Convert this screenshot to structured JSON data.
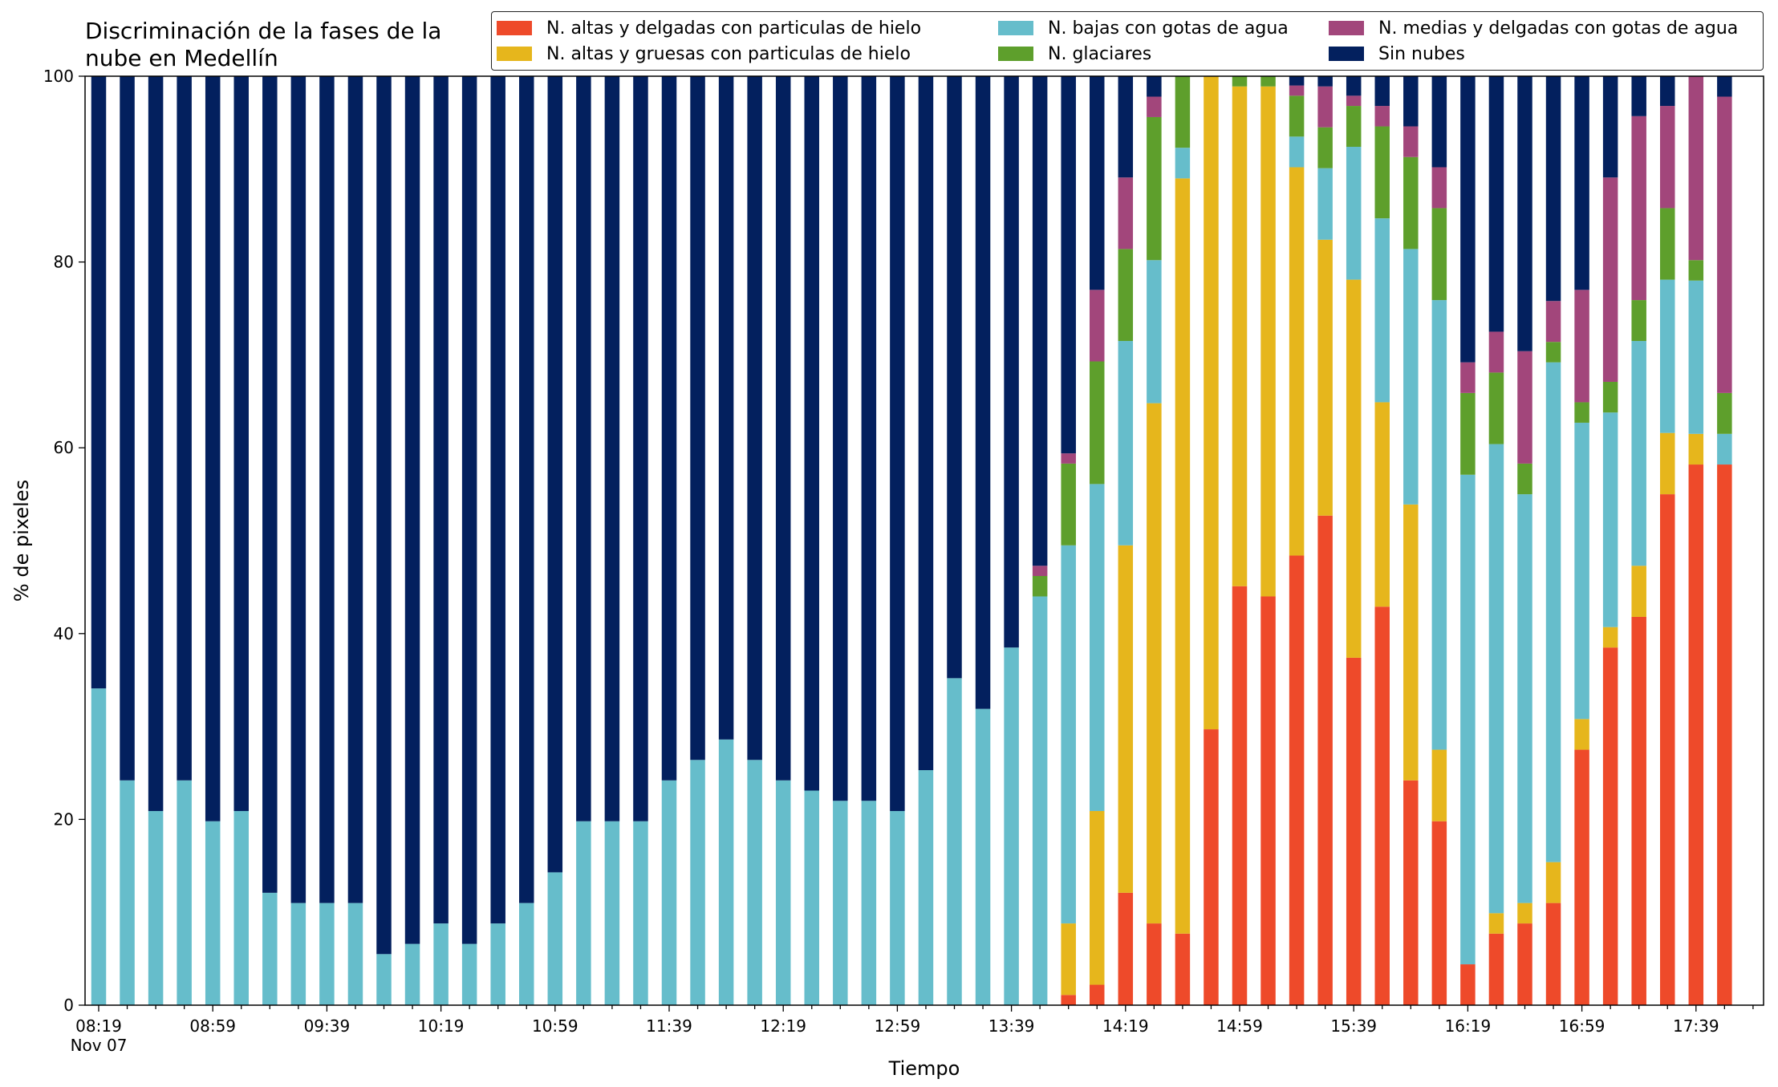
{
  "chart_data": {
    "type": "bar",
    "stacked": true,
    "title": "Discriminación de la fases de la nube en Medellín",
    "xlabel": "Tiempo",
    "ylabel": "% de pixeles",
    "ylim": [
      0,
      100
    ],
    "yticks": [
      0,
      20,
      40,
      60,
      80,
      100
    ],
    "grid": false,
    "legend_position": "top-right",
    "tick_labels": [
      "08:19",
      "08:59",
      "09:39",
      "10:19",
      "10:59",
      "11:39",
      "12:19",
      "12:59",
      "13:39",
      "14:19",
      "14:59",
      "15:39",
      "16:19",
      "16:59",
      "17:39"
    ],
    "tick_sublabel": "Nov 07",
    "categories": [
      "08:19",
      "08:29",
      "08:39",
      "08:49",
      "08:59",
      "09:09",
      "09:19",
      "09:29",
      "09:39",
      "09:49",
      "09:59",
      "10:09",
      "10:19",
      "10:29",
      "10:39",
      "10:49",
      "10:59",
      "11:09",
      "11:19",
      "11:29",
      "11:39",
      "11:49",
      "11:59",
      "12:09",
      "12:19",
      "12:29",
      "12:39",
      "12:49",
      "12:59",
      "13:09",
      "13:19",
      "13:29",
      "13:39",
      "13:49",
      "13:59",
      "14:09",
      "14:19",
      "14:29",
      "14:39",
      "14:49",
      "14:59",
      "15:09",
      "15:19",
      "15:29",
      "15:39",
      "15:49",
      "15:59",
      "16:09",
      "16:19",
      "16:29",
      "16:39",
      "16:49",
      "16:59",
      "17:09",
      "17:19",
      "17:29",
      "17:39",
      "17:49"
    ],
    "series": [
      {
        "name": "N. altas y delgadas con particulas de hielo",
        "color": "#ee4a2a",
        "values": [
          0,
          0,
          0,
          0,
          0,
          0,
          0,
          0,
          0,
          0,
          0,
          0,
          0,
          0,
          0,
          0,
          0,
          0,
          0,
          0,
          0,
          0,
          0,
          0,
          0,
          0,
          0,
          0,
          0,
          0,
          0,
          0,
          0,
          0,
          1.1,
          2.2,
          12.1,
          8.8,
          7.7,
          29.7,
          45.1,
          44.0,
          48.4,
          52.7,
          37.4,
          42.9,
          24.2,
          19.8,
          4.4,
          7.7,
          8.8,
          11.0,
          27.5,
          38.5,
          41.8,
          55.0,
          58.2,
          58.2
        ]
      },
      {
        "name": "N. altas y gruesas con particulas de hielo",
        "color": "#e6b61c",
        "values": [
          0,
          0,
          0,
          0,
          0,
          0,
          0,
          0,
          0,
          0,
          0,
          0,
          0,
          0,
          0,
          0,
          0,
          0,
          0,
          0,
          0,
          0,
          0,
          0,
          0,
          0,
          0,
          0,
          0,
          0,
          0,
          0,
          0,
          0,
          7.7,
          18.7,
          37.4,
          56.0,
          81.3,
          70.3,
          53.8,
          54.9,
          41.8,
          29.7,
          40.7,
          22.0,
          29.7,
          7.7,
          0,
          2.2,
          2.2,
          4.4,
          3.3,
          2.2,
          5.5,
          6.6,
          3.3,
          0
        ]
      },
      {
        "name": "N. bajas con gotas de agua",
        "color": "#66bdcb",
        "values": [
          34.1,
          24.2,
          20.9,
          24.2,
          19.8,
          20.9,
          12.1,
          11.0,
          11.0,
          11.0,
          5.5,
          6.6,
          8.8,
          6.6,
          8.8,
          11.0,
          14.3,
          19.8,
          19.8,
          19.8,
          24.2,
          26.4,
          28.6,
          26.4,
          24.2,
          23.1,
          22.0,
          22.0,
          20.9,
          25.3,
          35.2,
          31.9,
          38.5,
          44.0,
          40.7,
          35.2,
          22.0,
          15.4,
          3.3,
          0,
          0,
          0,
          3.3,
          7.7,
          14.3,
          19.8,
          27.5,
          48.4,
          52.7,
          50.5,
          44.0,
          53.8,
          31.9,
          23.1,
          24.2,
          16.5,
          16.5,
          3.3
        ]
      },
      {
        "name": "N. glaciares",
        "color": "#5e9f2c",
        "values": [
          0,
          0,
          0,
          0,
          0,
          0,
          0,
          0,
          0,
          0,
          0,
          0,
          0,
          0,
          0,
          0,
          0,
          0,
          0,
          0,
          0,
          0,
          0,
          0,
          0,
          0,
          0,
          0,
          0,
          0,
          0,
          0,
          0,
          2.2,
          8.8,
          13.2,
          9.9,
          15.4,
          7.7,
          0,
          1.1,
          1.1,
          4.4,
          4.4,
          4.4,
          9.9,
          9.9,
          9.9,
          8.8,
          7.7,
          3.3,
          2.2,
          2.2,
          3.3,
          4.4,
          7.7,
          2.2,
          4.4
        ]
      },
      {
        "name": "N. medias y delgadas con gotas de agua",
        "color": "#a2467b",
        "values": [
          0,
          0,
          0,
          0,
          0,
          0,
          0,
          0,
          0,
          0,
          0,
          0,
          0,
          0,
          0,
          0,
          0,
          0,
          0,
          0,
          0,
          0,
          0,
          0,
          0,
          0,
          0,
          0,
          0,
          0,
          0,
          0,
          0,
          1.1,
          1.1,
          7.7,
          7.7,
          2.2,
          0,
          0,
          0,
          0,
          1.1,
          4.4,
          1.1,
          2.2,
          3.3,
          4.4,
          3.3,
          4.4,
          12.1,
          4.4,
          12.1,
          22.0,
          19.8,
          11.0,
          19.8,
          31.9
        ]
      },
      {
        "name": "Sin nubes",
        "color": "#03205e",
        "values": [
          65.9,
          75.8,
          79.1,
          75.8,
          80.2,
          79.1,
          87.9,
          89.0,
          89.0,
          89.0,
          94.5,
          93.4,
          91.2,
          93.4,
          91.2,
          89.0,
          85.7,
          80.2,
          80.2,
          80.2,
          75.8,
          73.6,
          71.4,
          73.6,
          75.8,
          76.9,
          78.0,
          78.0,
          79.1,
          74.7,
          64.8,
          68.1,
          61.5,
          52.7,
          40.6,
          23.1,
          11.0,
          2.2,
          0,
          0,
          0,
          0,
          1.1,
          1.1,
          2.2,
          3.3,
          5.5,
          9.9,
          30.8,
          27.5,
          29.7,
          24.2,
          23.1,
          11.0,
          4.4,
          3.3,
          0,
          2.2
        ]
      }
    ]
  }
}
